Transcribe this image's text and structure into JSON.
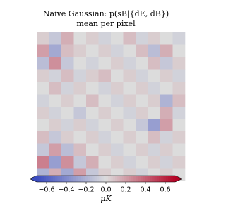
{
  "chart_data": {
    "type": "heatmap",
    "title": "Naive Gaussian: p(sB|{dE, dB})",
    "subtitle": "mean per pixel",
    "colorbar_label": "μK",
    "colormap": [
      "#3b4cc0",
      "#dcdcdc",
      "#b40426"
    ],
    "clim": [
      -0.7,
      0.7
    ],
    "cticks": [
      {
        "value": -0.6,
        "label": "−0.6"
      },
      {
        "value": -0.4,
        "label": "−0.4"
      },
      {
        "value": -0.2,
        "label": "−0.2"
      },
      {
        "value": 0,
        "label": "0.0"
      },
      0.2,
      0.4,
      0.6
    ],
    "z": [
      [
        0.05,
        -0.1,
        0.15,
        0.0,
        0.05,
        -0.05,
        0.0,
        0.1,
        -0.05,
        0.05,
        0.0,
        -0.05
      ],
      [
        0.2,
        -0.25,
        0.1,
        0.05,
        0.0,
        0.05,
        -0.05,
        0.0,
        0.1,
        -0.15,
        0.15,
        0.0
      ],
      [
        -0.15,
        0.25,
        -0.1,
        0.0,
        -0.05,
        0.0,
        0.05,
        -0.05,
        0.0,
        0.1,
        -0.1,
        0.05
      ],
      [
        0.05,
        -0.05,
        0.1,
        -0.05,
        0.05,
        0.1,
        0.0,
        0.05,
        -0.05,
        0.0,
        0.05,
        -0.05
      ],
      [
        0.0,
        0.1,
        -0.05,
        0.05,
        0.0,
        -0.05,
        0.05,
        0.0,
        0.05,
        -0.05,
        0.0,
        0.05
      ],
      [
        -0.05,
        0.0,
        0.05,
        0.0,
        0.1,
        0.0,
        -0.05,
        0.05,
        0.0,
        0.05,
        -0.2,
        0.1
      ],
      [
        0.05,
        -0.05,
        0.0,
        -0.1,
        0.0,
        0.05,
        0.0,
        -0.05,
        0.05,
        0.0,
        0.15,
        -0.05
      ],
      [
        0.0,
        0.05,
        -0.05,
        0.05,
        -0.05,
        0.0,
        0.05,
        0.0,
        -0.1,
        -0.3,
        0.2,
        0.0
      ],
      [
        0.1,
        -0.1,
        0.05,
        0.0,
        0.05,
        -0.05,
        0.0,
        0.05,
        0.0,
        0.1,
        -0.05,
        0.05
      ],
      [
        -0.1,
        0.2,
        -0.15,
        0.1,
        0.0,
        0.05,
        -0.05,
        0.0,
        0.05,
        -0.05,
        0.05,
        0.0
      ],
      [
        0.3,
        -0.3,
        0.25,
        -0.1,
        0.15,
        0.0,
        0.05,
        -0.05,
        0.0,
        0.05,
        -0.05,
        0.05
      ],
      [
        -0.2,
        0.15,
        -0.25,
        0.2,
        -0.1,
        0.05,
        0.0,
        0.05,
        -0.05,
        0.0,
        0.05,
        0.0
      ]
    ]
  }
}
